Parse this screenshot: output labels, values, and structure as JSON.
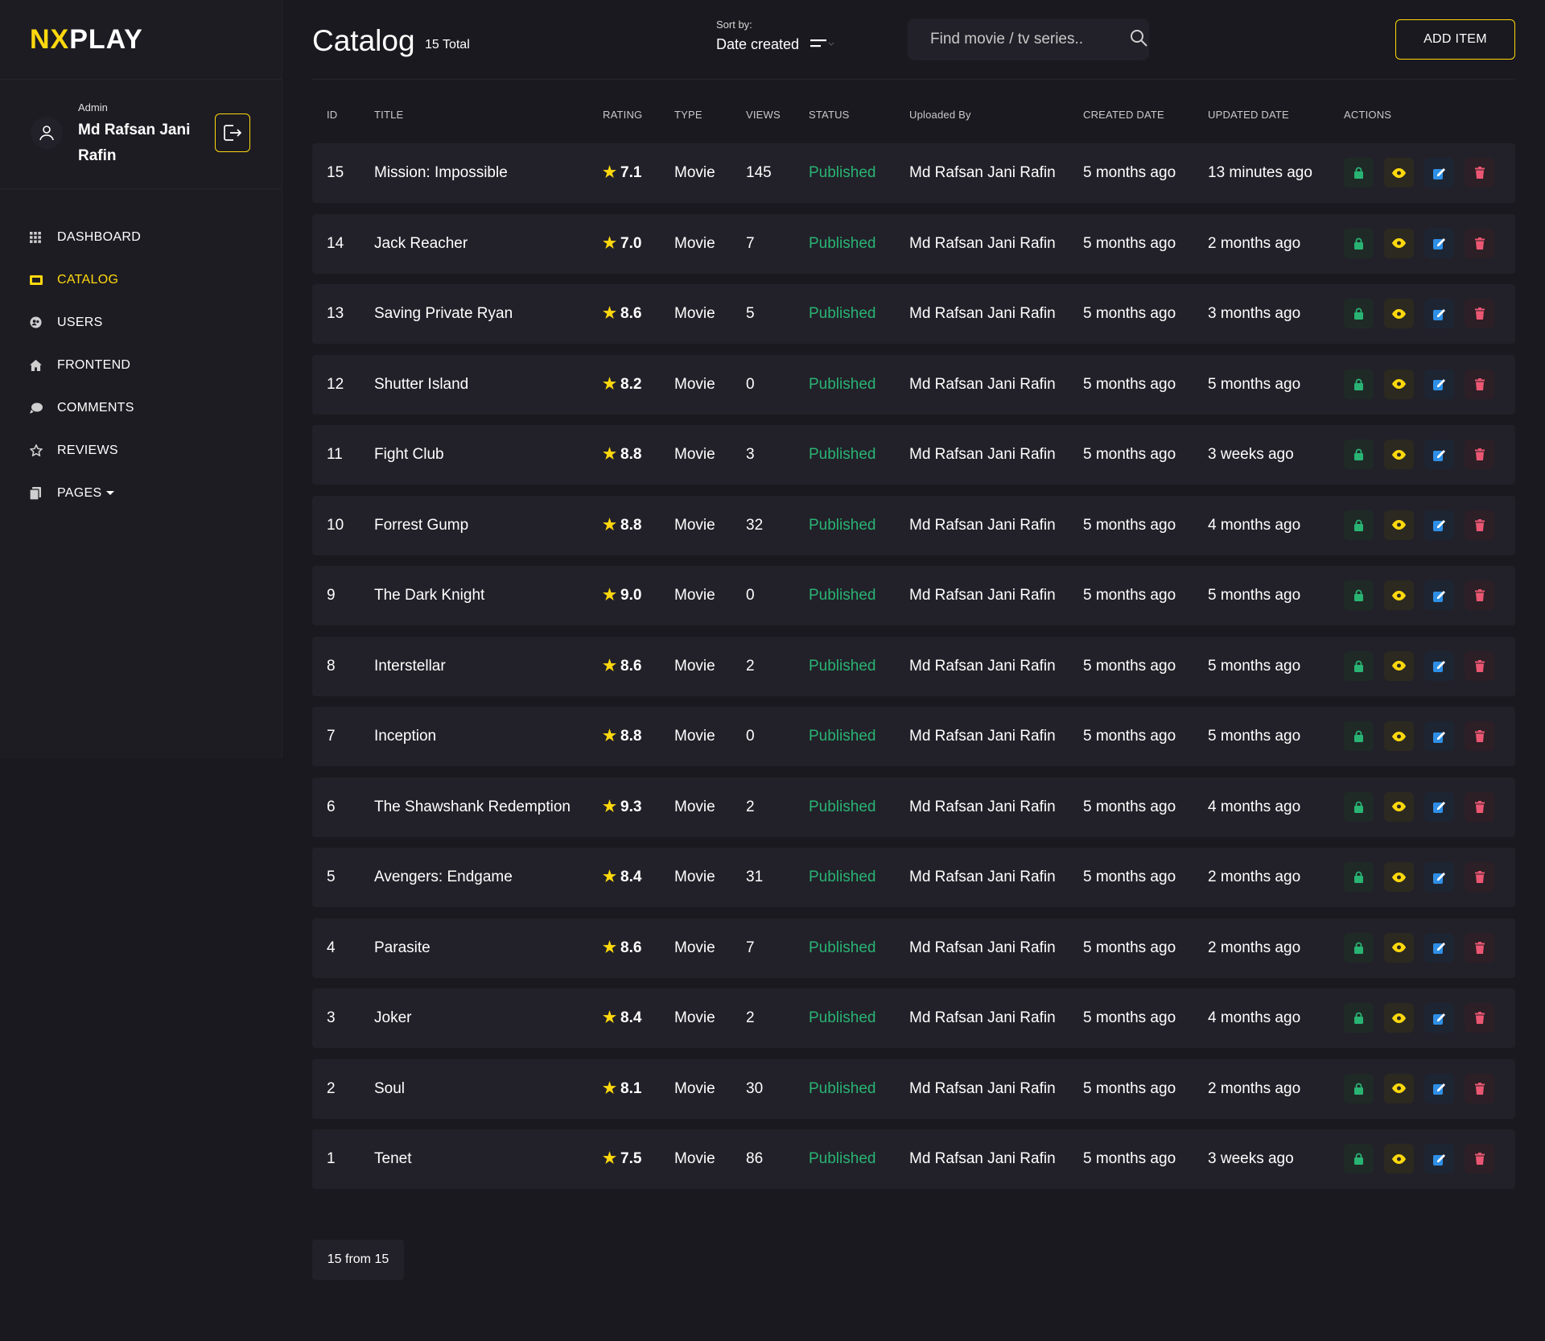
{
  "brand": {
    "part1": "NX",
    "part2": "PLAY"
  },
  "profile": {
    "role": "Admin",
    "name": "Md Rafsan Jani Rafin"
  },
  "nav": [
    {
      "label": "DASHBOARD",
      "icon": "grid-icon",
      "active": false
    },
    {
      "label": "CATALOG",
      "icon": "film-icon",
      "active": true
    },
    {
      "label": "USERS",
      "icon": "users-icon",
      "active": false
    },
    {
      "label": "FRONTEND",
      "icon": "home-icon",
      "active": false
    },
    {
      "label": "COMMENTS",
      "icon": "comments-icon",
      "active": false
    },
    {
      "label": "REVIEWS",
      "icon": "star-icon",
      "active": false
    },
    {
      "label": "PAGES",
      "icon": "pages-icon",
      "active": false
    }
  ],
  "header": {
    "title": "Catalog",
    "total": "15 Total",
    "sort_label": "Sort by:",
    "sort_value": "Date created",
    "search_placeholder": "Find movie / tv series..",
    "add_button": "ADD ITEM"
  },
  "table": {
    "columns": [
      "ID",
      "TITLE",
      "RATING",
      "TYPE",
      "VIEWS",
      "STATUS",
      "Uploaded By",
      "CREATED DATE",
      "UPDATED DATE",
      "ACTIONS"
    ],
    "rows": [
      {
        "id": "15",
        "title": "Mission: Impossible",
        "rating": "7.1",
        "type": "Movie",
        "views": "145",
        "status": "Published",
        "uploaded_by": "Md Rafsan Jani Rafin",
        "created": "5 months ago",
        "updated": "13 minutes ago"
      },
      {
        "id": "14",
        "title": "Jack Reacher",
        "rating": "7.0",
        "type": "Movie",
        "views": "7",
        "status": "Published",
        "uploaded_by": "Md Rafsan Jani Rafin",
        "created": "5 months ago",
        "updated": "2 months ago"
      },
      {
        "id": "13",
        "title": "Saving Private Ryan",
        "rating": "8.6",
        "type": "Movie",
        "views": "5",
        "status": "Published",
        "uploaded_by": "Md Rafsan Jani Rafin",
        "created": "5 months ago",
        "updated": "3 months ago"
      },
      {
        "id": "12",
        "title": "Shutter Island",
        "rating": "8.2",
        "type": "Movie",
        "views": "0",
        "status": "Published",
        "uploaded_by": "Md Rafsan Jani Rafin",
        "created": "5 months ago",
        "updated": "5 months ago"
      },
      {
        "id": "11",
        "title": "Fight Club",
        "rating": "8.8",
        "type": "Movie",
        "views": "3",
        "status": "Published",
        "uploaded_by": "Md Rafsan Jani Rafin",
        "created": "5 months ago",
        "updated": "3 weeks ago"
      },
      {
        "id": "10",
        "title": "Forrest Gump",
        "rating": "8.8",
        "type": "Movie",
        "views": "32",
        "status": "Published",
        "uploaded_by": "Md Rafsan Jani Rafin",
        "created": "5 months ago",
        "updated": "4 months ago"
      },
      {
        "id": "9",
        "title": "The Dark Knight",
        "rating": "9.0",
        "type": "Movie",
        "views": "0",
        "status": "Published",
        "uploaded_by": "Md Rafsan Jani Rafin",
        "created": "5 months ago",
        "updated": "5 months ago"
      },
      {
        "id": "8",
        "title": "Interstellar",
        "rating": "8.6",
        "type": "Movie",
        "views": "2",
        "status": "Published",
        "uploaded_by": "Md Rafsan Jani Rafin",
        "created": "5 months ago",
        "updated": "5 months ago"
      },
      {
        "id": "7",
        "title": "Inception",
        "rating": "8.8",
        "type": "Movie",
        "views": "0",
        "status": "Published",
        "uploaded_by": "Md Rafsan Jani Rafin",
        "created": "5 months ago",
        "updated": "5 months ago"
      },
      {
        "id": "6",
        "title": "The Shawshank Redemption",
        "rating": "9.3",
        "type": "Movie",
        "views": "2",
        "status": "Published",
        "uploaded_by": "Md Rafsan Jani Rafin",
        "created": "5 months ago",
        "updated": "4 months ago"
      },
      {
        "id": "5",
        "title": "Avengers: Endgame",
        "rating": "8.4",
        "type": "Movie",
        "views": "31",
        "status": "Published",
        "uploaded_by": "Md Rafsan Jani Rafin",
        "created": "5 months ago",
        "updated": "2 months ago"
      },
      {
        "id": "4",
        "title": "Parasite",
        "rating": "8.6",
        "type": "Movie",
        "views": "7",
        "status": "Published",
        "uploaded_by": "Md Rafsan Jani Rafin",
        "created": "5 months ago",
        "updated": "2 months ago"
      },
      {
        "id": "3",
        "title": "Joker",
        "rating": "8.4",
        "type": "Movie",
        "views": "2",
        "status": "Published",
        "uploaded_by": "Md Rafsan Jani Rafin",
        "created": "5 months ago",
        "updated": "4 months ago"
      },
      {
        "id": "2",
        "title": "Soul",
        "rating": "8.1",
        "type": "Movie",
        "views": "30",
        "status": "Published",
        "uploaded_by": "Md Rafsan Jani Rafin",
        "created": "5 months ago",
        "updated": "2 months ago"
      },
      {
        "id": "1",
        "title": "Tenet",
        "rating": "7.5",
        "type": "Movie",
        "views": "86",
        "status": "Published",
        "uploaded_by": "Md Rafsan Jani Rafin",
        "created": "5 months ago",
        "updated": "3 weeks ago"
      }
    ],
    "actions": [
      "lock-icon",
      "eye-icon",
      "edit-icon",
      "trash-icon"
    ]
  },
  "pagination": {
    "label": "15 from 15"
  },
  "colors": {
    "accent": "#ffd80e",
    "background": "#1a191f",
    "row_bg": "#222129",
    "status_published": "#29b474",
    "lock": "#29b474",
    "view": "#ffd80e",
    "edit": "#2f8fe6",
    "delete": "#eb5773"
  }
}
